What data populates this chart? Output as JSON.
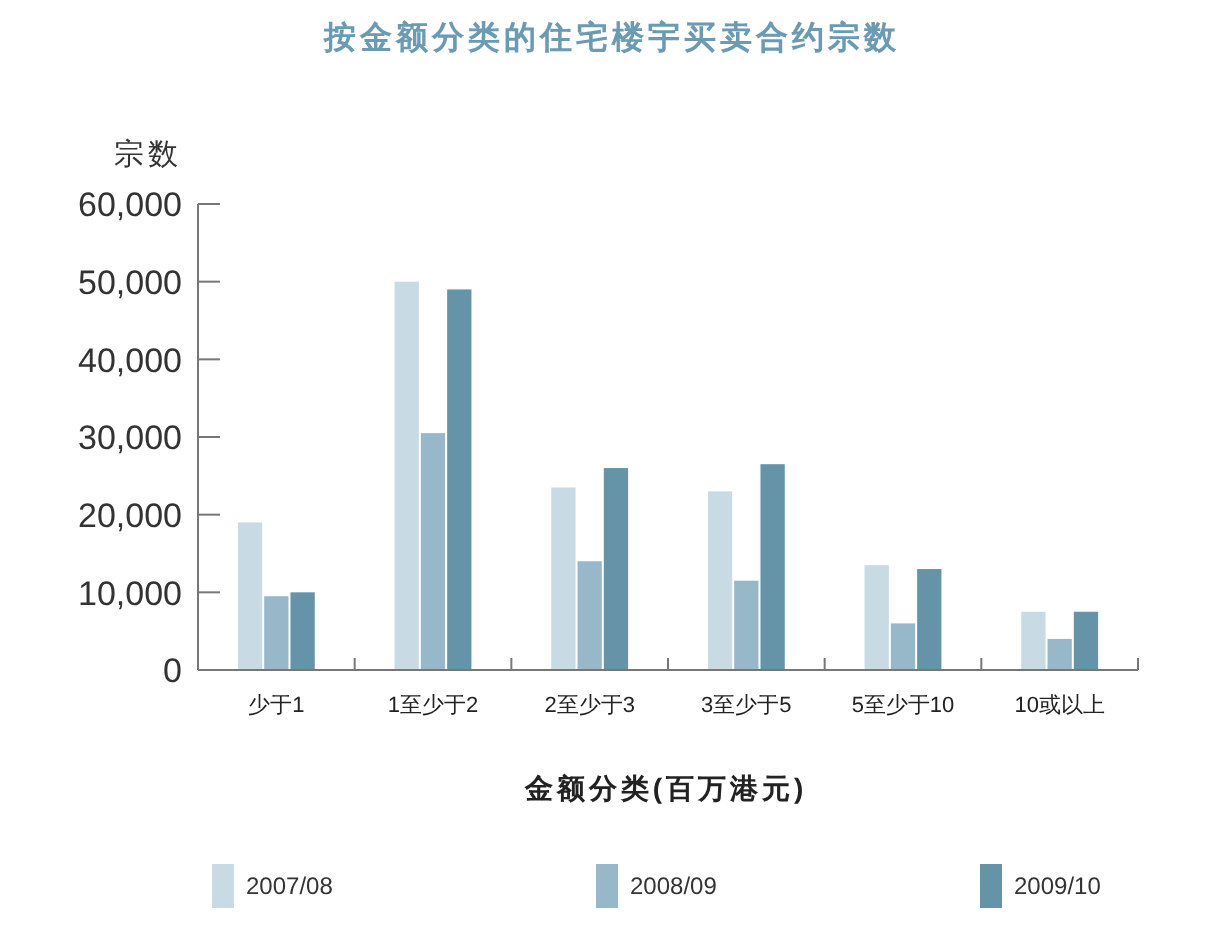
{
  "chart_data": {
    "type": "bar",
    "title": "按金额分类的住宅楼宇买卖合约宗数",
    "xlabel": "金额分类(百万港元)",
    "ylabel": "宗数",
    "categories": [
      "少于1",
      "1至少于2",
      "2至少于3",
      "3至少于5",
      "5至少于10",
      "10或以上"
    ],
    "series": [
      {
        "name": "2007/08",
        "color": "#c8dae4",
        "values": [
          19000,
          50000,
          23500,
          23000,
          13500,
          7500
        ]
      },
      {
        "name": "2008/09",
        "color": "#96b8c9",
        "values": [
          9500,
          30500,
          14000,
          11500,
          6000,
          4000
        ]
      },
      {
        "name": "2009/10",
        "color": "#6593a8",
        "values": [
          10000,
          49000,
          26000,
          26500,
          13000,
          7500
        ]
      }
    ],
    "ylim": [
      0,
      60000
    ],
    "yticks": [
      0,
      {
        "value": 10000,
        "label": "10,000"
      },
      {
        "value": 20000,
        "label": "20,000"
      },
      {
        "value": 30000,
        "label": "30,000"
      },
      {
        "value": 40000,
        "label": "40,000"
      },
      {
        "value": 50000,
        "label": "50,000"
      },
      {
        "value": 60000,
        "label": "60,000"
      }
    ],
    "legend": "bottom"
  }
}
